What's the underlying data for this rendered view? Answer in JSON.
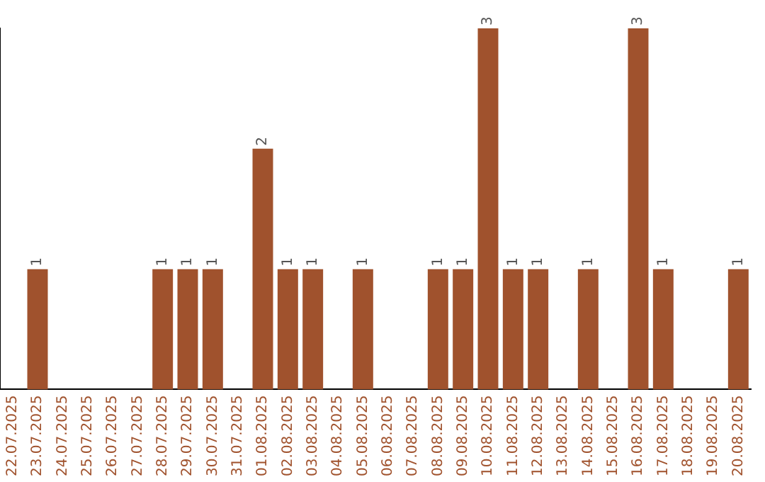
{
  "chart_data": {
    "type": "bar",
    "categories": [
      "22.07.2025",
      "23.07.2025",
      "24.07.2025",
      "25.07.2025",
      "26.07.2025",
      "27.07.2025",
      "28.07.2025",
      "29.07.2025",
      "30.07.2025",
      "31.07.2025",
      "01.08.2025",
      "02.08.2025",
      "03.08.2025",
      "04.08.2025",
      "05.08.2025",
      "06.08.2025",
      "07.08.2025",
      "08.08.2025",
      "09.08.2025",
      "10.08.2025",
      "11.08.2025",
      "12.08.2025",
      "13.08.2025",
      "14.08.2025",
      "15.08.2025",
      "16.08.2025",
      "17.08.2025",
      "18.08.2025",
      "19.08.2025",
      "20.08.2025"
    ],
    "values": [
      0,
      1,
      0,
      0,
      0,
      0,
      1,
      1,
      1,
      0,
      2,
      1,
      1,
      0,
      1,
      0,
      0,
      1,
      1,
      3,
      1,
      1,
      0,
      1,
      0,
      3,
      1,
      0,
      0,
      1
    ],
    "value_labels": [
      null,
      "1",
      null,
      null,
      null,
      null,
      "1",
      "1",
      "1",
      null,
      "2",
      "1",
      "1",
      null,
      "1",
      null,
      null,
      "1",
      "1",
      "3",
      "1",
      "1",
      null,
      "1",
      null,
      "3",
      "1",
      null,
      null,
      "1"
    ],
    "color": "#a0522d",
    "ylim": [
      0,
      3
    ],
    "tick_labels": "x",
    "grid": false,
    "legend": false
  }
}
